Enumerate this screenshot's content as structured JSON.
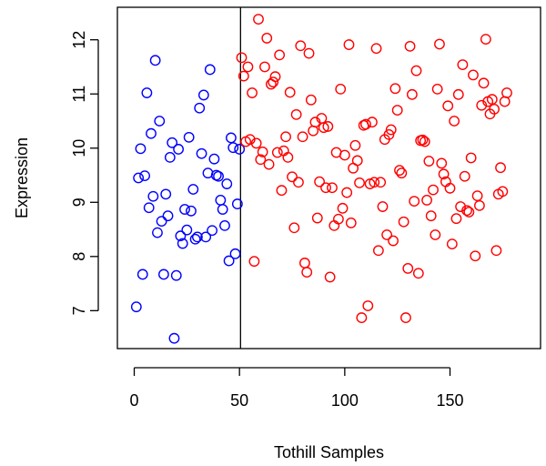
{
  "chart_data": {
    "type": "scatter",
    "title": "",
    "xlabel": "Tothill Samples",
    "ylabel": "Expression",
    "xlim": [
      -8,
      193
    ],
    "ylim": [
      6.3,
      12.6
    ],
    "xticks": [
      0,
      50,
      100,
      150
    ],
    "yticks": [
      7,
      8,
      9,
      10,
      11,
      12
    ],
    "vertical_line_x": 50.5,
    "marker": "open-circle",
    "series": [
      {
        "color": "#0000ff",
        "points": [
          [
            1,
            7.07
          ],
          [
            2,
            9.45
          ],
          [
            3,
            9.99
          ],
          [
            4,
            7.67
          ],
          [
            5,
            9.49
          ],
          [
            6,
            11.02
          ],
          [
            7,
            8.9
          ],
          [
            8,
            10.27
          ],
          [
            9,
            9.11
          ],
          [
            10,
            11.62
          ],
          [
            11,
            8.44
          ],
          [
            12,
            10.5
          ],
          [
            13,
            8.65
          ],
          [
            14,
            7.67
          ],
          [
            15,
            9.15
          ],
          [
            16,
            8.75
          ],
          [
            17,
            9.83
          ],
          [
            18,
            10.1
          ],
          [
            19,
            6.49
          ],
          [
            20,
            7.65
          ],
          [
            21,
            9.98
          ],
          [
            22,
            8.38
          ],
          [
            23,
            8.24
          ],
          [
            24,
            8.87
          ],
          [
            25,
            8.49
          ],
          [
            26,
            10.2
          ],
          [
            27,
            8.84
          ],
          [
            28,
            9.24
          ],
          [
            29,
            8.32
          ],
          [
            30,
            8.36
          ],
          [
            31,
            10.74
          ],
          [
            32,
            9.9
          ],
          [
            33,
            10.98
          ],
          [
            34,
            8.36
          ],
          [
            35,
            9.54
          ],
          [
            36,
            11.45
          ],
          [
            37,
            8.48
          ],
          [
            38,
            9.8
          ],
          [
            39,
            9.5
          ],
          [
            40,
            9.48
          ],
          [
            41,
            9.04
          ],
          [
            42,
            8.87
          ],
          [
            43,
            8.57
          ],
          [
            44,
            9.34
          ],
          [
            45,
            7.92
          ],
          [
            46,
            10.19
          ],
          [
            47,
            10.01
          ],
          [
            48,
            8.05
          ],
          [
            49,
            8.97
          ],
          [
            50,
            9.98
          ]
        ]
      },
      {
        "color": "#ff0000",
        "points": [
          [
            51,
            11.67
          ],
          [
            52,
            11.33
          ],
          [
            53,
            10.12
          ],
          [
            54,
            11.5
          ],
          [
            55,
            10.16
          ],
          [
            56,
            11.02
          ],
          [
            57,
            7.91
          ],
          [
            58,
            10.09
          ],
          [
            59,
            12.38
          ],
          [
            60,
            9.79
          ],
          [
            61,
            9.93
          ],
          [
            62,
            11.5
          ],
          [
            63,
            12.03
          ],
          [
            64,
            9.7
          ],
          [
            65,
            11.18
          ],
          [
            66,
            11.22
          ],
          [
            67,
            11.32
          ],
          [
            68,
            9.92
          ],
          [
            69,
            11.72
          ],
          [
            70,
            9.22
          ],
          [
            71,
            9.95
          ],
          [
            72,
            10.21
          ],
          [
            73,
            9.83
          ],
          [
            74,
            11.03
          ],
          [
            75,
            9.47
          ],
          [
            76,
            8.53
          ],
          [
            77,
            10.62
          ],
          [
            78,
            9.37
          ],
          [
            79,
            11.89
          ],
          [
            80,
            10.21
          ],
          [
            81,
            7.88
          ],
          [
            82,
            7.71
          ],
          [
            83,
            11.75
          ],
          [
            84,
            10.89
          ],
          [
            85,
            10.32
          ],
          [
            86,
            10.48
          ],
          [
            87,
            8.71
          ],
          [
            88,
            9.38
          ],
          [
            89,
            10.55
          ],
          [
            90,
            10.38
          ],
          [
            91,
            9.27
          ],
          [
            92,
            10.4
          ],
          [
            93,
            7.62
          ],
          [
            94,
            9.27
          ],
          [
            95,
            8.57
          ],
          [
            96,
            9.92
          ],
          [
            97,
            8.69
          ],
          [
            98,
            11.09
          ],
          [
            99,
            8.89
          ],
          [
            100,
            9.87
          ],
          [
            101,
            9.18
          ],
          [
            102,
            11.91
          ],
          [
            103,
            8.62
          ],
          [
            104,
            9.63
          ],
          [
            105,
            10.05
          ],
          [
            106,
            9.77
          ],
          [
            107,
            9.36
          ],
          [
            108,
            6.87
          ],
          [
            109,
            10.42
          ],
          [
            110,
            10.44
          ],
          [
            111,
            7.09
          ],
          [
            112,
            9.34
          ],
          [
            113,
            10.48
          ],
          [
            114,
            9.37
          ],
          [
            115,
            11.84
          ],
          [
            116,
            8.11
          ],
          [
            117,
            9.37
          ],
          [
            118,
            8.92
          ],
          [
            119,
            10.16
          ],
          [
            120,
            8.4
          ],
          [
            121,
            10.25
          ],
          [
            122,
            10.34
          ],
          [
            123,
            8.29
          ],
          [
            124,
            11.1
          ],
          [
            125,
            10.7
          ],
          [
            126,
            9.59
          ],
          [
            127,
            9.54
          ],
          [
            128,
            8.64
          ],
          [
            129,
            6.87
          ],
          [
            130,
            7.78
          ],
          [
            131,
            11.88
          ],
          [
            132,
            10.99
          ],
          [
            133,
            9.02
          ],
          [
            134,
            11.43
          ],
          [
            135,
            7.69
          ],
          [
            136,
            10.14
          ],
          [
            137,
            10.15
          ],
          [
            138,
            10.12
          ],
          [
            139,
            9.04
          ],
          [
            140,
            9.76
          ],
          [
            141,
            8.75
          ],
          [
            142,
            9.23
          ],
          [
            143,
            8.4
          ],
          [
            144,
            11.09
          ],
          [
            145,
            11.92
          ],
          [
            146,
            9.72
          ],
          [
            147,
            9.52
          ],
          [
            148,
            9.38
          ],
          [
            149,
            10.78
          ],
          [
            150,
            9.26
          ],
          [
            151,
            8.23
          ],
          [
            152,
            10.5
          ],
          [
            153,
            8.7
          ],
          [
            154,
            10.99
          ],
          [
            155,
            8.92
          ],
          [
            156,
            11.54
          ],
          [
            157,
            9.48
          ],
          [
            158,
            8.85
          ],
          [
            159,
            8.82
          ],
          [
            160,
            9.82
          ],
          [
            161,
            11.35
          ],
          [
            162,
            8.01
          ],
          [
            163,
            9.12
          ],
          [
            164,
            8.94
          ],
          [
            165,
            10.79
          ],
          [
            166,
            11.2
          ],
          [
            167,
            12.01
          ],
          [
            168,
            10.86
          ],
          [
            169,
            10.63
          ],
          [
            170,
            10.9
          ],
          [
            171,
            10.72
          ],
          [
            172,
            8.11
          ],
          [
            173,
            9.15
          ],
          [
            174,
            9.64
          ],
          [
            175,
            9.2
          ],
          [
            176,
            10.86
          ],
          [
            177,
            11.02
          ]
        ]
      }
    ]
  }
}
